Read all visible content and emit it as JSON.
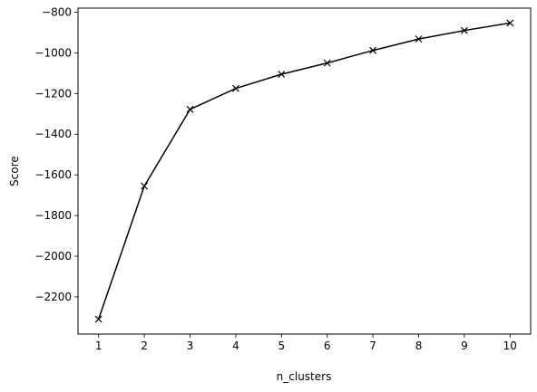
{
  "chart_data": {
    "type": "line",
    "title": "",
    "xlabel": "n_clusters",
    "ylabel": "Score",
    "x": [
      1,
      2,
      3,
      4,
      5,
      6,
      7,
      8,
      9,
      10
    ],
    "series": [
      {
        "name": "score",
        "marker": "x",
        "color": "#000000",
        "values": [
          -2310,
          -1655,
          -1278,
          -1175,
          -1105,
          -1050,
          -988,
          -932,
          -890,
          -853
        ]
      }
    ],
    "xticks": [
      1,
      2,
      3,
      4,
      5,
      6,
      7,
      8,
      9,
      10
    ],
    "xtick_labels": [
      "1",
      "2",
      "3",
      "4",
      "5",
      "6",
      "7",
      "8",
      "9",
      "10"
    ],
    "yticks": [
      -2200,
      -2000,
      -1800,
      -1600,
      -1400,
      -1200,
      -1000,
      -800
    ],
    "ytick_labels": [
      "−2200",
      "−2000",
      "−1800",
      "−1600",
      "−1400",
      "−1200",
      "−1000",
      "−800"
    ],
    "xlim": [
      0.55,
      10.45
    ],
    "ylim": [
      -2383,
      -780
    ],
    "grid": false
  }
}
